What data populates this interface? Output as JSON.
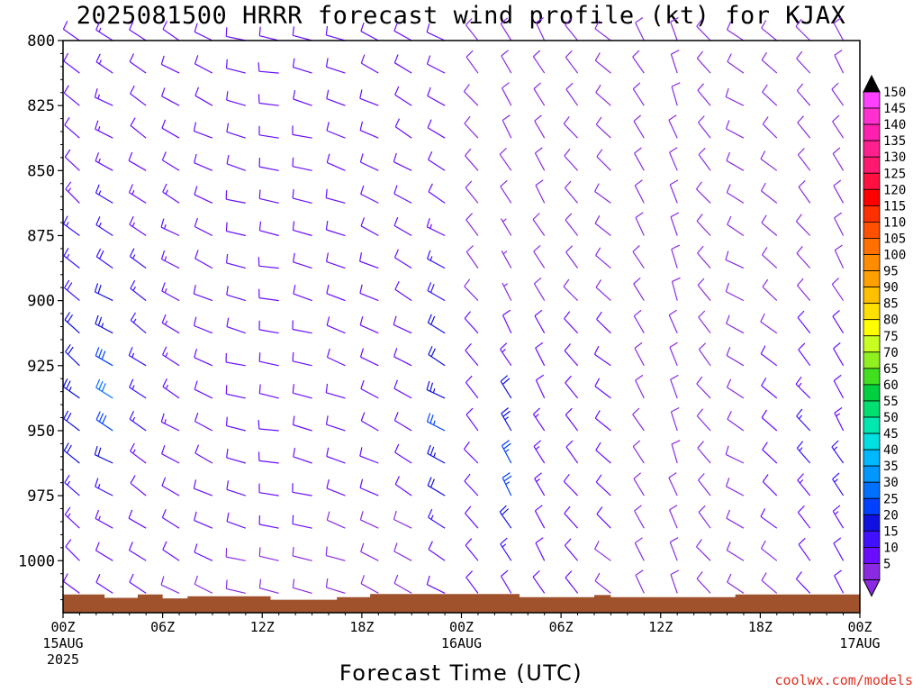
{
  "chart_data": {
    "type": "wind-barb-profile",
    "title": "2025081500 HRRR forecast wind profile (kt) for KJAX",
    "xlabel": "Forecast Time (UTC)",
    "ylabel": "",
    "credit": "coolwx.com/models",
    "y_axis": {
      "ticks": [
        "800",
        "825",
        "850",
        "875",
        "900",
        "925",
        "950",
        "975",
        "1000"
      ],
      "range": [
        800,
        1020
      ],
      "inverted": true
    },
    "x_axis": {
      "range_hours": [
        0,
        48
      ],
      "ticks": [
        {
          "hour": 0,
          "label": "00Z",
          "sub1": "15AUG",
          "sub2": "2025"
        },
        {
          "hour": 6,
          "label": "06Z",
          "sub1": "",
          "sub2": ""
        },
        {
          "hour": 12,
          "label": "12Z",
          "sub1": "",
          "sub2": ""
        },
        {
          "hour": 18,
          "label": "18Z",
          "sub1": "",
          "sub2": ""
        },
        {
          "hour": 24,
          "label": "00Z",
          "sub1": "16AUG",
          "sub2": ""
        },
        {
          "hour": 30,
          "label": "06Z",
          "sub1": "",
          "sub2": ""
        },
        {
          "hour": 36,
          "label": "12Z",
          "sub1": "",
          "sub2": ""
        },
        {
          "hour": 42,
          "label": "18Z",
          "sub1": "",
          "sub2": ""
        },
        {
          "hour": 48,
          "label": "00Z",
          "sub1": "17AUG",
          "sub2": ""
        }
      ]
    },
    "colorbar": {
      "labels": [
        "5",
        "10",
        "15",
        "20",
        "25",
        "30",
        "35",
        "40",
        "45",
        "50",
        "55",
        "60",
        "65",
        "70",
        "75",
        "80",
        "85",
        "90",
        "95",
        "100",
        "105",
        "110",
        "115",
        "120",
        "125",
        "130",
        "135",
        "140",
        "145",
        "150"
      ],
      "colors": [
        "#8a2be2",
        "#6a0dff",
        "#4010ff",
        "#1010e0",
        "#0040ff",
        "#0070ff",
        "#0098ff",
        "#00b8ff",
        "#00e0e0",
        "#00e8b0",
        "#00e070",
        "#00d040",
        "#40e020",
        "#90f020",
        "#c8ff20",
        "#ffff00",
        "#ffe000",
        "#ffc000",
        "#ffa000",
        "#ff8c00",
        "#ff7000",
        "#ff5000",
        "#ff3000",
        "#ff0000",
        "#ff1040",
        "#ff1a70",
        "#ff2090",
        "#ff20b0",
        "#ff30d0",
        "#ff40ff"
      ]
    },
    "terrain": {
      "color": "#a0522d",
      "surface_pressure": [
        {
          "hour": 0,
          "p": 1013
        },
        {
          "hour": 2.5,
          "p": 1013
        },
        {
          "hour": 2.5,
          "p": 1014.3
        },
        {
          "hour": 4.5,
          "p": 1014.3
        },
        {
          "hour": 4.5,
          "p": 1013
        },
        {
          "hour": 6,
          "p": 1013
        },
        {
          "hour": 6,
          "p": 1014.5
        },
        {
          "hour": 7.5,
          "p": 1014.5
        },
        {
          "hour": 7.5,
          "p": 1013.7
        },
        {
          "hour": 12.5,
          "p": 1013.7
        },
        {
          "hour": 12.5,
          "p": 1015
        },
        {
          "hour": 16.5,
          "p": 1015
        },
        {
          "hour": 16.5,
          "p": 1014
        },
        {
          "hour": 18.5,
          "p": 1014
        },
        {
          "hour": 18.5,
          "p": 1012.8
        },
        {
          "hour": 27.5,
          "p": 1012.8
        },
        {
          "hour": 27.5,
          "p": 1014
        },
        {
          "hour": 32,
          "p": 1014
        },
        {
          "hour": 32,
          "p": 1013.2
        },
        {
          "hour": 33,
          "p": 1013.2
        },
        {
          "hour": 33,
          "p": 1014
        },
        {
          "hour": 40.5,
          "p": 1014
        },
        {
          "hour": 40.5,
          "p": 1013
        },
        {
          "hour": 48,
          "p": 1013
        }
      ]
    },
    "barbs": {
      "pressure_levels": [
        800,
        812.5,
        825,
        837.5,
        850,
        862.5,
        875,
        887.5,
        900,
        912.5,
        925,
        937.5,
        950,
        962.5,
        975,
        987.5,
        1000,
        1012.5
      ],
      "hours_start": 1,
      "hours_step": 2,
      "hours_count": 24,
      "columns": [
        {
          "hour": 1,
          "dir": 310,
          "spd": [
            12,
            12,
            12,
            12,
            12,
            14,
            15,
            16,
            18,
            20,
            22,
            24,
            22,
            20,
            16,
            14,
            12,
            10
          ]
        },
        {
          "hour": 3,
          "dir": 300,
          "spd": [
            14,
            14,
            14,
            14,
            14,
            15,
            16,
            18,
            20,
            24,
            28,
            30,
            28,
            20,
            16,
            14,
            12,
            10
          ]
        },
        {
          "hour": 5,
          "dir": 305,
          "spd": [
            12,
            12,
            12,
            12,
            12,
            13,
            14,
            15,
            15,
            16,
            16,
            16,
            15,
            14,
            12,
            12,
            10,
            10
          ]
        },
        {
          "hour": 7,
          "dir": 300,
          "spd": [
            12,
            12,
            12,
            12,
            12,
            13,
            13,
            14,
            14,
            14,
            14,
            14,
            13,
            12,
            11,
            10,
            10,
            8
          ]
        },
        {
          "hour": 9,
          "dir": 295,
          "spd": [
            10,
            10,
            10,
            10,
            10,
            10,
            10,
            10,
            10,
            10,
            10,
            10,
            10,
            10,
            10,
            10,
            10,
            8
          ]
        },
        {
          "hour": 11,
          "dir": 285,
          "spd": [
            10,
            10,
            10,
            10,
            10,
            10,
            10,
            10,
            10,
            10,
            10,
            10,
            10,
            10,
            10,
            10,
            8,
            8
          ]
        },
        {
          "hour": 13,
          "dir": 280,
          "spd": [
            10,
            10,
            10,
            10,
            10,
            10,
            10,
            10,
            10,
            10,
            10,
            10,
            10,
            10,
            10,
            10,
            8,
            8
          ]
        },
        {
          "hour": 15,
          "dir": 285,
          "spd": [
            10,
            10,
            10,
            10,
            10,
            10,
            10,
            10,
            10,
            10,
            10,
            10,
            10,
            10,
            10,
            10,
            8,
            8
          ]
        },
        {
          "hour": 17,
          "dir": 290,
          "spd": [
            10,
            10,
            10,
            10,
            10,
            10,
            10,
            10,
            10,
            10,
            10,
            10,
            10,
            10,
            10,
            8,
            8,
            8
          ]
        },
        {
          "hour": 19,
          "dir": 295,
          "spd": [
            10,
            10,
            10,
            10,
            10,
            10,
            10,
            10,
            10,
            10,
            10,
            10,
            10,
            10,
            10,
            8,
            8,
            8
          ]
        },
        {
          "hour": 21,
          "dir": 300,
          "spd": [
            10,
            10,
            10,
            10,
            10,
            10,
            10,
            10,
            10,
            10,
            10,
            10,
            10,
            10,
            10,
            8,
            8,
            8
          ]
        },
        {
          "hour": 23,
          "dir": 300,
          "spd": [
            10,
            10,
            10,
            10,
            10,
            10,
            14,
            16,
            18,
            20,
            22,
            24,
            26,
            24,
            20,
            16,
            12,
            10
          ]
        },
        {
          "hour": 25,
          "dir": 320,
          "spd": [
            8,
            8,
            8,
            8,
            8,
            8,
            8,
            8,
            8,
            10,
            10,
            12,
            12,
            12,
            12,
            10,
            10,
            10
          ]
        },
        {
          "hour": 27,
          "dir": 330,
          "spd": [
            8,
            8,
            8,
            8,
            8,
            8,
            6,
            6,
            6,
            10,
            14,
            22,
            24,
            26,
            26,
            20,
            16,
            10
          ]
        },
        {
          "hour": 29,
          "dir": 330,
          "spd": [
            8,
            8,
            8,
            8,
            8,
            8,
            8,
            8,
            8,
            10,
            10,
            12,
            14,
            14,
            14,
            12,
            10,
            10
          ]
        },
        {
          "hour": 31,
          "dir": 320,
          "spd": [
            8,
            8,
            8,
            8,
            8,
            8,
            8,
            8,
            8,
            10,
            10,
            12,
            12,
            12,
            12,
            10,
            10,
            10
          ]
        },
        {
          "hour": 33,
          "dir": 310,
          "spd": [
            8,
            8,
            8,
            8,
            8,
            8,
            8,
            8,
            8,
            10,
            10,
            10,
            10,
            10,
            10,
            10,
            8,
            8
          ]
        },
        {
          "hour": 35,
          "dir": 330,
          "spd": [
            8,
            8,
            8,
            8,
            8,
            8,
            8,
            8,
            8,
            8,
            8,
            8,
            8,
            8,
            8,
            8,
            8,
            8
          ]
        },
        {
          "hour": 37,
          "dir": 340,
          "spd": [
            8,
            8,
            8,
            8,
            8,
            8,
            8,
            8,
            8,
            8,
            8,
            8,
            8,
            8,
            8,
            8,
            8,
            8
          ]
        },
        {
          "hour": 39,
          "dir": 320,
          "spd": [
            8,
            8,
            8,
            8,
            8,
            8,
            8,
            8,
            8,
            8,
            8,
            8,
            8,
            8,
            8,
            8,
            8,
            8
          ]
        },
        {
          "hour": 41,
          "dir": 300,
          "spd": [
            8,
            8,
            8,
            8,
            8,
            8,
            8,
            8,
            8,
            8,
            8,
            8,
            8,
            8,
            8,
            8,
            8,
            8
          ]
        },
        {
          "hour": 43,
          "dir": 310,
          "spd": [
            8,
            8,
            8,
            8,
            8,
            8,
            8,
            8,
            8,
            8,
            10,
            10,
            10,
            10,
            10,
            10,
            8,
            8
          ]
        },
        {
          "hour": 45,
          "dir": 320,
          "spd": [
            8,
            8,
            8,
            8,
            8,
            8,
            8,
            8,
            8,
            10,
            12,
            14,
            16,
            16,
            14,
            12,
            10,
            10
          ]
        },
        {
          "hour": 47,
          "dir": 330,
          "spd": [
            8,
            8,
            8,
            8,
            8,
            8,
            8,
            8,
            8,
            10,
            10,
            12,
            14,
            16,
            16,
            14,
            12,
            10
          ]
        }
      ]
    }
  }
}
